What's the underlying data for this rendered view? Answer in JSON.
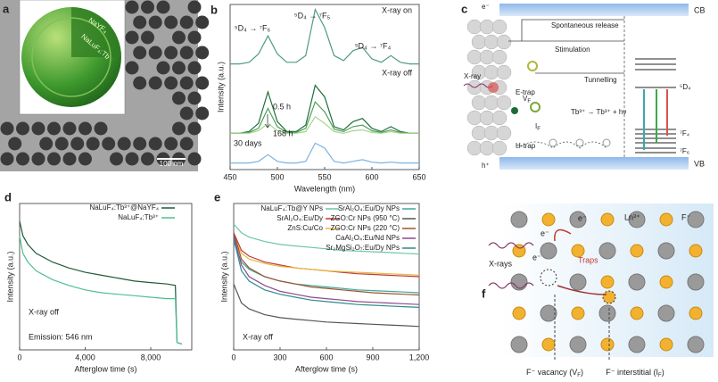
{
  "panel_a": {
    "label": "a",
    "shell": "NaYF₄",
    "core": "NaLuF₄:Tb",
    "scale_bar": "100 nm"
  },
  "chart_data": [
    {
      "panel": "b",
      "type": "line",
      "xlabel": "Wavelength (nm)",
      "ylabel": "Intensity (a.u.)",
      "x": [
        450,
        460,
        470,
        480,
        490,
        500,
        510,
        520,
        530,
        540,
        550,
        560,
        570,
        580,
        590,
        600,
        610,
        620,
        630,
        640,
        650
      ],
      "xlim": [
        450,
        650
      ],
      "xticks": [
        450,
        500,
        550,
        600,
        650
      ],
      "ylim": [
        0,
        10
      ],
      "series": [
        {
          "name": "X-ray on",
          "color": "#4f9c7e",
          "values": [
            6.4,
            6.4,
            6.5,
            7.0,
            8.1,
            7.0,
            6.5,
            6.5,
            6.9,
            9.7,
            8.6,
            6.9,
            6.6,
            7.2,
            7.4,
            6.7,
            6.5,
            6.9,
            6.5,
            6.4,
            6.4
          ]
        },
        {
          "name": "0.5 h",
          "color": "#1f6e3a",
          "values": [
            2.2,
            2.2,
            2.3,
            2.8,
            4.7,
            2.9,
            2.3,
            2.3,
            2.7,
            5.1,
            4.4,
            2.6,
            2.4,
            2.9,
            3.1,
            2.5,
            2.3,
            2.6,
            2.3,
            2.2,
            2.2
          ]
        },
        {
          "color": "#4da05a",
          "values": [
            2.2,
            2.2,
            2.25,
            2.5,
            3.7,
            2.6,
            2.25,
            2.25,
            2.5,
            4.1,
            3.5,
            2.45,
            2.3,
            2.6,
            2.7,
            2.35,
            2.25,
            2.4,
            2.25,
            2.2,
            2.2
          ]
        },
        {
          "name": "168 h",
          "color": "#a7d38d",
          "values": [
            2.2,
            2.2,
            2.2,
            2.35,
            2.8,
            2.35,
            2.2,
            2.2,
            2.3,
            3.2,
            2.8,
            2.3,
            2.2,
            2.35,
            2.4,
            2.25,
            2.2,
            2.3,
            2.2,
            2.2,
            2.2
          ]
        },
        {
          "name": "30 days",
          "color": "#7ab3e0",
          "values": [
            0.4,
            0.4,
            0.4,
            0.5,
            0.9,
            0.5,
            0.4,
            0.4,
            0.5,
            1.6,
            1.3,
            0.5,
            0.4,
            0.5,
            0.6,
            0.45,
            0.4,
            0.45,
            0.4,
            0.4,
            0.4
          ]
        }
      ],
      "annotations": [
        "X-ray off",
        "⁵D₄ → ⁷F₆",
        "⁵D₄ → ⁷F₅",
        "⁵D₄ → ⁷F₄"
      ]
    },
    {
      "panel": "d",
      "type": "line",
      "xlabel": "Afterglow time (s)",
      "ylabel": "Intensity (a.u.)",
      "x": [
        0,
        200,
        500,
        1000,
        2000,
        3000,
        4000,
        5000,
        6000,
        7000,
        8000,
        9000,
        9500,
        9600,
        9900
      ],
      "xlim": [
        0,
        10500
      ],
      "xticks": [
        0,
        {
          "value": 4000,
          "label": "4,000"
        },
        {
          "value": 8000,
          "label": "8,000"
        }
      ],
      "ylim": [
        0,
        1
      ],
      "legend": "upper right",
      "series": [
        {
          "name": "NaLuF₄:Tb³⁺@NaYF₄",
          "color": "#1e5a38",
          "values": [
            0.88,
            0.78,
            0.72,
            0.66,
            0.6,
            0.56,
            0.53,
            0.51,
            0.49,
            0.47,
            0.46,
            0.45,
            0.44,
            0.05,
            0.04
          ]
        },
        {
          "name": "NaLuF₄:Tb³⁺",
          "color": "#4fbf8f",
          "values": [
            0.78,
            0.66,
            0.6,
            0.54,
            0.48,
            0.44,
            0.41,
            0.39,
            0.38,
            0.37,
            0.36,
            0.35,
            0.35,
            0.05,
            0.04
          ]
        }
      ],
      "annotations": [
        "X-ray off",
        "Emission: 546 nm"
      ]
    },
    {
      "panel": "e",
      "type": "line",
      "xlabel": "Afterglow time (s)",
      "ylabel": "Intensity (a.u.)",
      "x": [
        0,
        50,
        100,
        200,
        300,
        400,
        500,
        600,
        700,
        800,
        900,
        1000,
        1100,
        1200
      ],
      "xlim": [
        0,
        1200
      ],
      "xticks": [
        0,
        300,
        600,
        900,
        {
          "value": 1200,
          "label": "1,200"
        }
      ],
      "ylim": [
        0,
        1
      ],
      "legend": "upper right",
      "series": [
        {
          "name": "NaLuF₄:Tb@Y NPs",
          "color": "#6cc6a8",
          "values": [
            0.86,
            0.8,
            0.77,
            0.74,
            0.72,
            0.71,
            0.7,
            0.69,
            0.68,
            0.675,
            0.67,
            0.665,
            0.66,
            0.655
          ]
        },
        {
          "name": "SrAl₂O₄:Eu/Dy",
          "color": "#c0393b",
          "values": [
            0.8,
            0.68,
            0.64,
            0.6,
            0.58,
            0.56,
            0.55,
            0.54,
            0.53,
            0.52,
            0.515,
            0.51,
            0.505,
            0.5
          ]
        },
        {
          "name": "ZnS:Cu/Co",
          "color": "#e8b83c",
          "values": [
            0.78,
            0.66,
            0.62,
            0.59,
            0.57,
            0.56,
            0.55,
            0.54,
            0.535,
            0.53,
            0.525,
            0.52,
            0.515,
            0.51
          ]
        },
        {
          "name": "SrAl₂O₄:Eu/Dy NPs",
          "color": "#3aa99f",
          "values": [
            0.74,
            0.6,
            0.55,
            0.5,
            0.47,
            0.45,
            0.44,
            0.43,
            0.42,
            0.41,
            0.405,
            0.4,
            0.395,
            0.39
          ]
        },
        {
          "name": "ZGO:Cr NPs (950 °C)",
          "color": "#555555",
          "values": [
            0.45,
            0.32,
            0.28,
            0.24,
            0.22,
            0.21,
            0.2,
            0.19,
            0.185,
            0.18,
            0.175,
            0.17,
            0.165,
            0.16
          ]
        },
        {
          "name": "ZGO:Cr NPs (220 °C)",
          "color": "#a0522d",
          "values": [
            0.8,
            0.62,
            0.56,
            0.5,
            0.47,
            0.45,
            0.43,
            0.42,
            0.41,
            0.4,
            0.39,
            0.385,
            0.38,
            0.375
          ]
        },
        {
          "name": "CaAl₂O₄:Eu/Nd NPs",
          "color": "#8b4a8b",
          "values": [
            0.78,
            0.58,
            0.5,
            0.44,
            0.4,
            0.38,
            0.36,
            0.35,
            0.34,
            0.33,
            0.325,
            0.32,
            0.315,
            0.31
          ]
        },
        {
          "name": "Sr₂MgSi₂O₇:Eu/Dy NPs",
          "color": "#2e8b8b",
          "values": [
            0.76,
            0.54,
            0.47,
            0.41,
            0.38,
            0.36,
            0.34,
            0.33,
            0.32,
            0.31,
            0.305,
            0.3,
            0.295,
            0.29
          ]
        }
      ],
      "annotations": [
        "X-ray off"
      ]
    }
  ],
  "panel_c": {
    "label": "c",
    "electron": "e⁻",
    "cb": "CB",
    "vb": "VB",
    "hole": "h⁺",
    "xray": "X-ray",
    "spontaneous": "Spontaneous release",
    "stimulation": "Stimulation",
    "tunnelling": "Tunnelling",
    "e_trap": "E-trap",
    "h_trap": "H-trap",
    "vf": [
      "V",
      "F"
    ],
    "if": [
      "I",
      "F"
    ],
    "emission": "Tb³⁺ → Tb³⁺ + hν",
    "d4": "⁵D₄",
    "f4": "⁷F₄",
    "f6": "⁷F₆"
  },
  "panel_f": {
    "label": "f",
    "ln": "Ln³⁺",
    "f_ion": "F⁻",
    "electrons": [
      "e⁻",
      "e⁻",
      "e⁻"
    ],
    "traps": "Traps",
    "xrays": "X-rays",
    "vacancy": [
      "F⁻ vacancy (V",
      "F",
      ")"
    ],
    "interstitial": [
      "F⁻ interstitial (I",
      "F",
      ")"
    ]
  }
}
